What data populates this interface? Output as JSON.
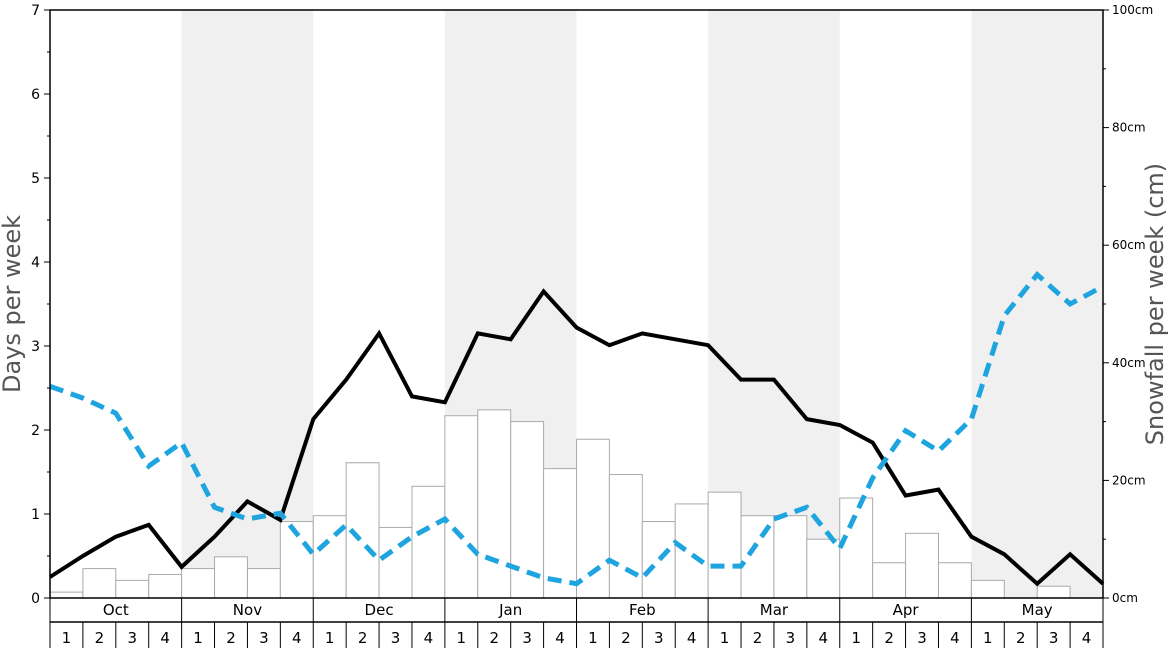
{
  "chart_data": {
    "type": "bar",
    "title": "",
    "ylabel_left": "Days per week",
    "ylabel_right": "Snowfall per week (cm)",
    "ylim_left": [
      0,
      7
    ],
    "ylim_right": [
      0,
      100
    ],
    "left_ticks": [
      "0",
      "1",
      "2",
      "3",
      "4",
      "5",
      "6",
      "7"
    ],
    "right_ticks": [
      "0cm",
      "20cm",
      "40cm",
      "60cm",
      "80cm",
      "100cm"
    ],
    "months": [
      "Oct",
      "Nov",
      "Dec",
      "Jan",
      "Feb",
      "Mar",
      "Apr",
      "May"
    ],
    "weeks": [
      "1",
      "2",
      "3",
      "4"
    ],
    "shaded_months": [
      "Nov",
      "Jan",
      "Mar",
      "May"
    ],
    "snowfall_cm": [
      1,
      5,
      3,
      4,
      5,
      7,
      5,
      13,
      14,
      23,
      12,
      19,
      31,
      32,
      30,
      22,
      27,
      21,
      13,
      16,
      18,
      14,
      14,
      10,
      17,
      6,
      11,
      6,
      3,
      0,
      2,
      0
    ],
    "series": [
      {
        "name": "",
        "style": "solid",
        "color": "#000000",
        "values": [
          0.25,
          0.5,
          0.73,
          0.87,
          0.37,
          0.73,
          1.15,
          0.93,
          2.13,
          2.6,
          3.15,
          2.4,
          2.33,
          3.15,
          3.08,
          3.65,
          3.22,
          3.01,
          3.15,
          3.08,
          3.01,
          2.6,
          2.6,
          2.13,
          2.06,
          1.85,
          1.22,
          1.29,
          0.73,
          0.52,
          0.17,
          0.52,
          0.17
        ]
      },
      {
        "name": "",
        "style": "dashed",
        "color": "#1ea5e0",
        "values": [
          2.52,
          2.38,
          2.2,
          1.57,
          1.85,
          1.08,
          0.94,
          1.01,
          0.52,
          0.87,
          0.45,
          0.73,
          0.94,
          0.52,
          0.38,
          0.24,
          0.17,
          0.45,
          0.24,
          0.66,
          0.38,
          0.38,
          0.94,
          1.08,
          0.59,
          1.43,
          1.99,
          1.75,
          2.13,
          3.36,
          3.85,
          3.5,
          3.71
        ]
      }
    ]
  }
}
